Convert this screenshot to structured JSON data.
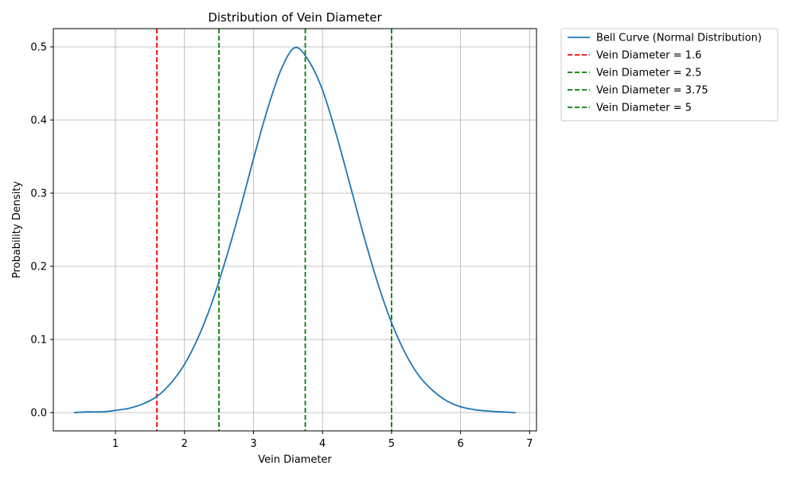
{
  "chart_data": {
    "type": "line",
    "title": "Distribution of Vein Diameter",
    "xlabel": "Vein Diameter",
    "ylabel": "Probability Density",
    "xlim": [
      0.1,
      7.1
    ],
    "ylim": [
      -0.025,
      0.525
    ],
    "xticks": [
      1,
      2,
      3,
      4,
      5,
      6,
      7
    ],
    "yticks": [
      0.0,
      0.1,
      0.2,
      0.3,
      0.4,
      0.5
    ],
    "grid": true,
    "legend_position": "outside-top-right",
    "series": [
      {
        "name": "Bell Curve (Normal Distribution)",
        "color": "#1f77b4",
        "style": "solid",
        "x": [
          0.4,
          0.6,
          0.8,
          1.0,
          1.2,
          1.4,
          1.6,
          1.8,
          2.0,
          2.2,
          2.4,
          2.6,
          2.8,
          3.0,
          3.2,
          3.4,
          3.6,
          3.8,
          4.0,
          4.2,
          4.4,
          4.6,
          4.8,
          5.0,
          5.2,
          5.4,
          5.6,
          5.8,
          6.0,
          6.2,
          6.4,
          6.6,
          6.8
        ],
        "y": [
          0.0,
          0.001,
          0.001,
          0.003,
          0.006,
          0.012,
          0.022,
          0.04,
          0.066,
          0.103,
          0.151,
          0.21,
          0.276,
          0.347,
          0.414,
          0.469,
          0.499,
          0.481,
          0.441,
          0.38,
          0.311,
          0.241,
          0.177,
          0.123,
          0.081,
          0.05,
          0.03,
          0.016,
          0.008,
          0.004,
          0.002,
          0.001,
          0.0
        ]
      }
    ],
    "vlines": [
      {
        "name": "Vein Diameter = 1.6",
        "x": 1.6,
        "color": "#ff0000",
        "style": "dashed"
      },
      {
        "name": "Vein Diameter = 2.5",
        "x": 2.5,
        "color": "#008000",
        "style": "dashed"
      },
      {
        "name": "Vein Diameter = 3.75",
        "x": 3.75,
        "color": "#008000",
        "style": "dashed"
      },
      {
        "name": "Vein Diameter = 5",
        "x": 5.0,
        "color": "#008000",
        "style": "dashed"
      }
    ]
  }
}
